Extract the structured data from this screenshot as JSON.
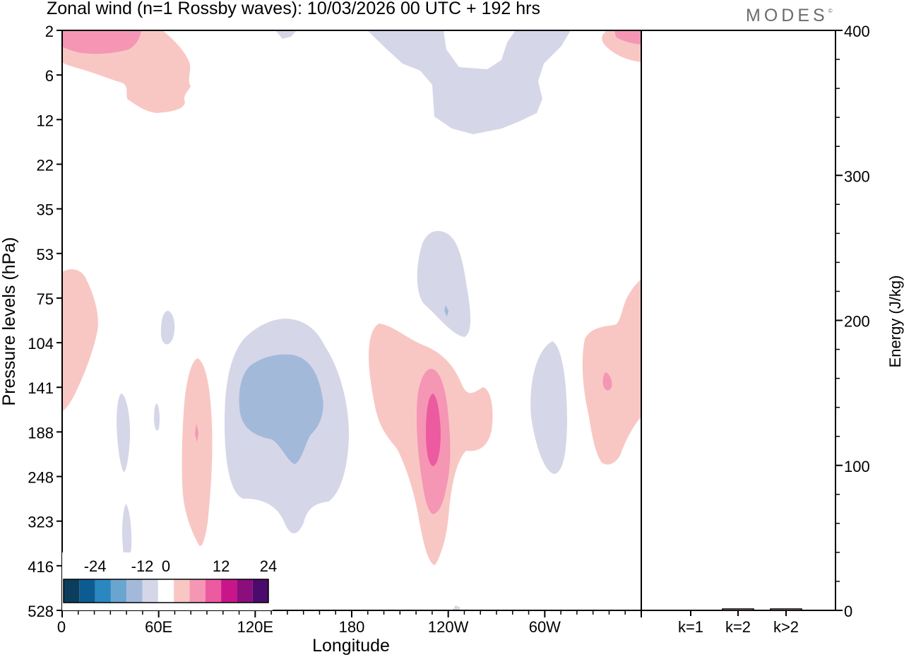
{
  "header": {
    "title": "Zonal wind (n=1 Rossby waves):  10/03/2026  00 UTC  + 192 hrs",
    "brand": "MODES",
    "brand_mark": "©"
  },
  "chart_data": [
    {
      "type": "heatmap",
      "title": "Zonal wind (n=1 Rossby waves):  10/03/2026  00 UTC  + 192 hrs",
      "xlabel": "Longitude",
      "ylabel": "Pressure levels (hPa)",
      "x_ticks": [
        "0",
        "60E",
        "120E",
        "180",
        "120W",
        "60W"
      ],
      "x_tick_degrees": [
        0,
        60,
        120,
        180,
        240,
        300
      ],
      "xlim": [
        0,
        360
      ],
      "y_ticks": [
        2,
        6,
        12,
        22,
        35,
        53,
        75,
        104,
        141,
        188,
        248,
        323,
        416,
        528
      ],
      "y_axis": "pressure levels (categorical, top = 2 hPa, bottom = 528 hPa)",
      "colorbar": {
        "labels": [
          "-24",
          "-12",
          "0",
          "12",
          "24"
        ],
        "label_values": [
          -24,
          -12,
          0,
          12,
          24
        ],
        "levels": [
          -28,
          -24,
          -20,
          -16,
          -12,
          -8,
          -4,
          4,
          8,
          12,
          16,
          20,
          24,
          28
        ],
        "colors": [
          "#0d3d5c",
          "#0d5c91",
          "#2a87bf",
          "#6aa5cf",
          "#a2b9da",
          "#d5d6e8",
          "#ffffff",
          "#f8c7c4",
          "#f596b4",
          "#ec5aa0",
          "#c8168a",
          "#8c0d7c",
          "#4b0b6c"
        ]
      },
      "anomalies": [
        {
          "name": "positive-center-topleft",
          "lon": 20,
          "level_hPa": 2,
          "value": 8
        },
        {
          "name": "negative-center-upper",
          "lon": 165,
          "level_hPa": 6,
          "value": -4
        },
        {
          "name": "negative-center-180-mid",
          "lon": 128,
          "level_hPa": 141,
          "value": -12
        },
        {
          "name": "positive-center-lower",
          "lon": 229,
          "level_hPa": 188,
          "value": 16
        },
        {
          "name": "negative-center-75hPa",
          "lon": 238,
          "level_hPa": 75,
          "value": -8
        },
        {
          "name": "positive-center-right",
          "lon": 338,
          "level_hPa": 141,
          "value": 8
        },
        {
          "name": "negative-center-right",
          "lon": 308,
          "level_hPa": 188,
          "value": -4
        }
      ]
    },
    {
      "type": "bar",
      "ylabel": "Energy (J/kg)",
      "categories": [
        "k=1",
        "k=2",
        "k>2"
      ],
      "values": [
        0,
        1,
        1
      ],
      "ylim": [
        0,
        400
      ],
      "y_ticks": [
        0,
        100,
        200,
        300,
        400
      ]
    }
  ]
}
